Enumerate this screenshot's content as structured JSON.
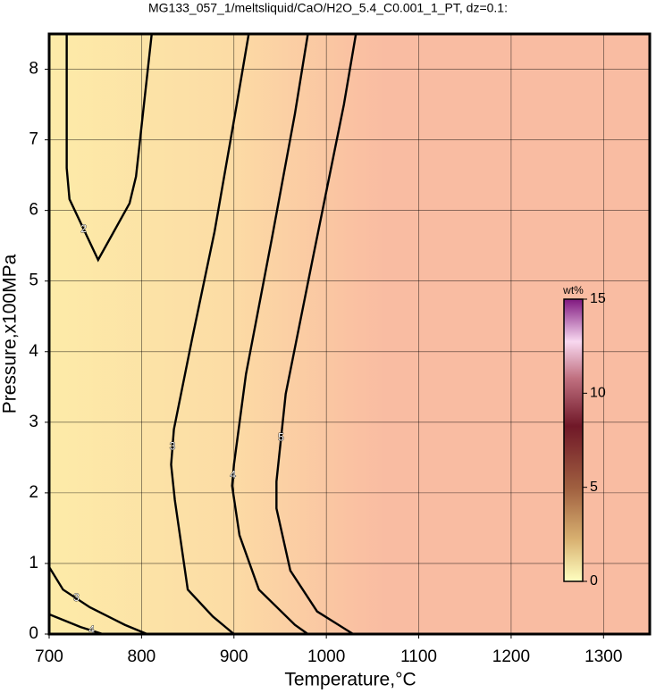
{
  "chart_data": {
    "type": "contour",
    "title": "MG133_057_1/meltsliquid/CaO/H2O_5.4_C0.001_1_PT, dz=0.1:",
    "x_label": "Temperature,°C",
    "y_label": "Pressure,x100MPa",
    "xlim": [
      700,
      1350
    ],
    "ylim": [
      0,
      8.5
    ],
    "xticks": [
      700,
      800,
      900,
      1000,
      1100,
      1200,
      1300
    ],
    "yticks": [
      0,
      1,
      2,
      3,
      4,
      5,
      6,
      7,
      8
    ],
    "grid": true,
    "contours": [
      {
        "level": 2,
        "x": [
          719,
          719,
          722,
          753,
          787,
          794,
          811
        ],
        "y": [
          8.5,
          6.6,
          6.16,
          5.3,
          6.1,
          6.48,
          8.5
        ]
      },
      {
        "level": 3,
        "x": [
          916,
          903,
          879,
          855,
          835,
          832,
          836,
          850,
          877,
          900
        ],
        "y": [
          8.5,
          7.5,
          5.7,
          4.2,
          2.9,
          2.4,
          1.9,
          0.63,
          0.25,
          0
        ]
      },
      {
        "level": 3,
        "x": [
          700,
          715,
          744,
          782,
          806
        ],
        "y": [
          0.95,
          0.63,
          0.38,
          0.13,
          0
        ]
      },
      {
        "level": 4,
        "x": [
          700,
          734,
          758
        ],
        "y": [
          0.28,
          0.1,
          0
        ]
      },
      {
        "level": 4,
        "x": [
          980,
          966,
          941,
          913,
          900,
          898,
          906,
          927,
          966,
          980
        ],
        "y": [
          8.5,
          7.37,
          5.6,
          3.68,
          2.4,
          2.1,
          1.4,
          0.63,
          0.13,
          0
        ]
      },
      {
        "level": 5,
        "x": [
          1032,
          1019,
          985,
          956,
          946,
          946,
          961,
          990,
          1029
        ],
        "y": [
          8.5,
          7.5,
          5.3,
          3.4,
          2.16,
          1.78,
          0.9,
          0.32,
          0
        ]
      }
    ],
    "colorbar": {
      "label": "wt%",
      "lim": [
        0,
        15
      ],
      "ticks": [
        0,
        5,
        10,
        15
      ]
    }
  }
}
